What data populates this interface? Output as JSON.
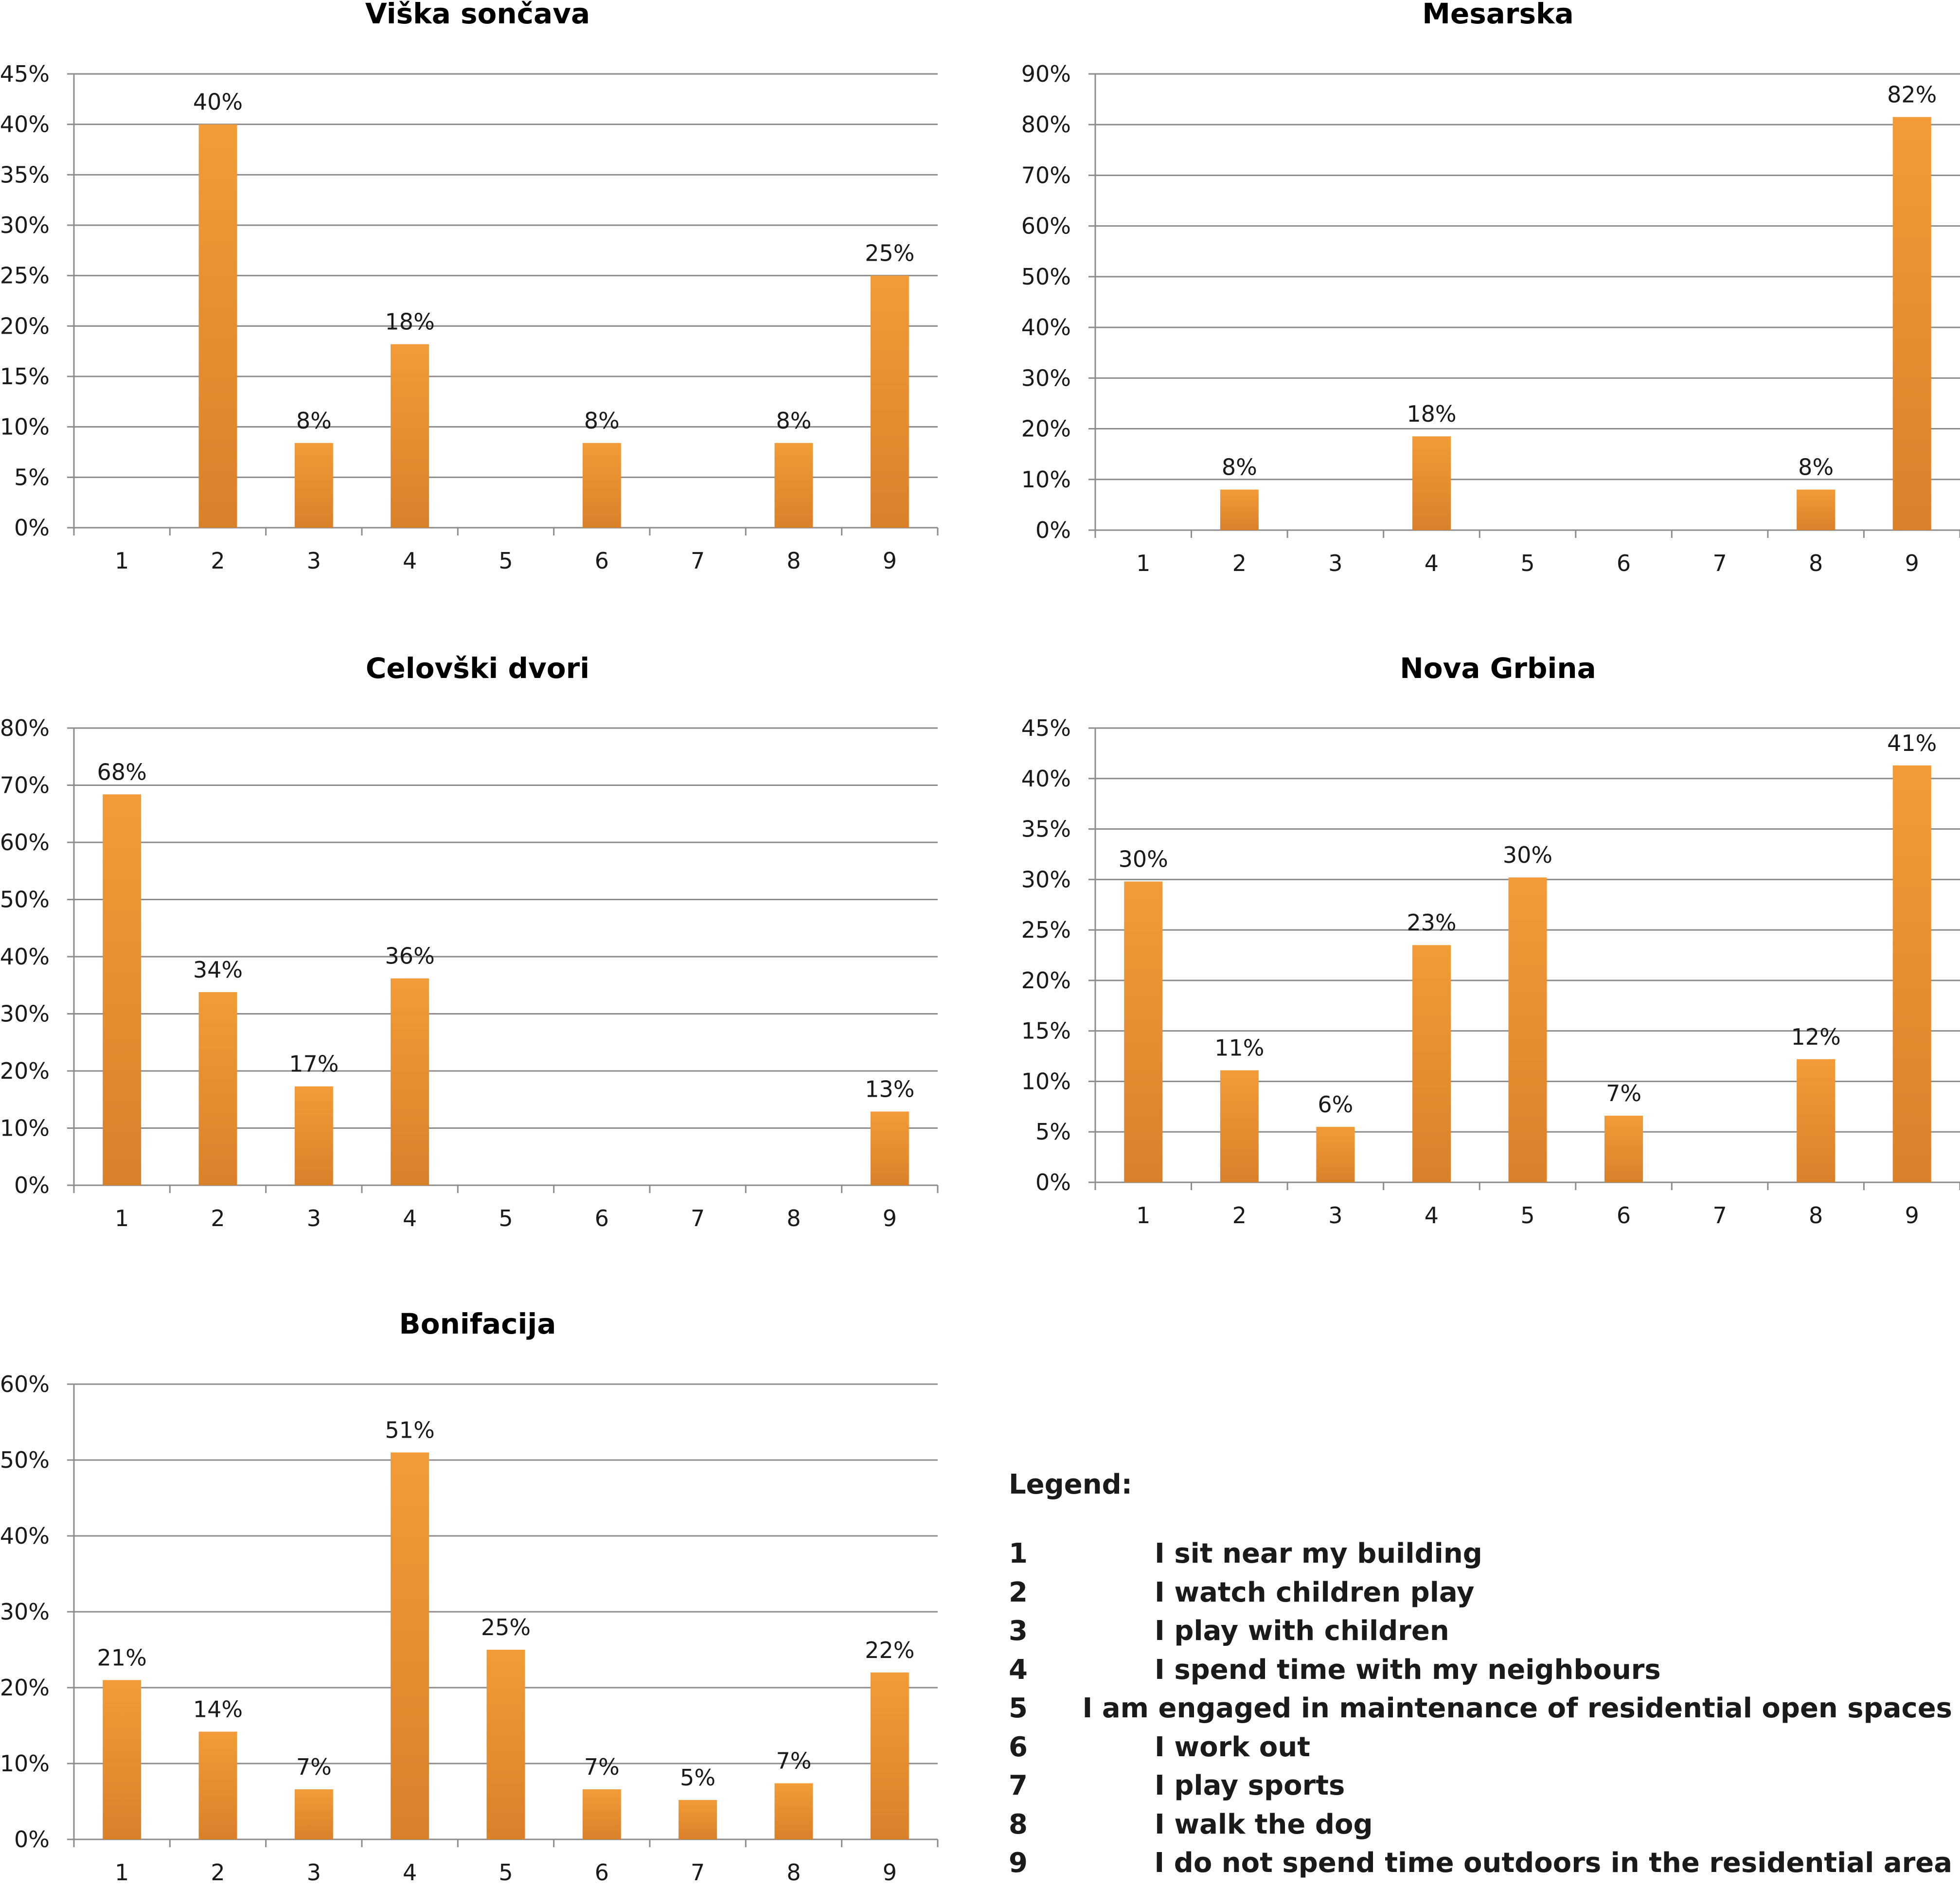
{
  "bar_color": "#f29b38",
  "bar_color_dark": "#d9812a",
  "chart_data": [
    {
      "type": "bar",
      "title": "Viška sončava",
      "categories": [
        "1",
        "2",
        "3",
        "4",
        "5",
        "6",
        "7",
        "8",
        "9"
      ],
      "values": [
        0,
        40,
        8.4,
        18.2,
        0,
        8.4,
        0,
        8.4,
        25
      ],
      "labels": [
        "",
        "40%",
        "8%",
        "18%",
        "",
        "8%",
        "",
        "8%",
        "25%"
      ],
      "ylim": [
        0,
        45
      ],
      "ystep": 5,
      "yticks": [
        "0%",
        "5%",
        "10%",
        "15%",
        "20%",
        "25%",
        "30%",
        "35%",
        "40%",
        "45%"
      ],
      "xlabel": "",
      "ylabel": ""
    },
    {
      "type": "bar",
      "title": "Mesarska",
      "categories": [
        "1",
        "2",
        "3",
        "4",
        "5",
        "6",
        "7",
        "8",
        "9"
      ],
      "values": [
        0,
        8,
        0,
        18.5,
        0,
        0,
        0,
        8,
        81.5
      ],
      "labels": [
        "",
        "8%",
        "",
        "18%",
        "",
        "",
        "",
        "8%",
        "82%"
      ],
      "ylim": [
        0,
        90
      ],
      "ystep": 10,
      "yticks": [
        "0%",
        "10%",
        "20%",
        "30%",
        "40%",
        "50%",
        "60%",
        "70%",
        "80%",
        "90%"
      ],
      "xlabel": "",
      "ylabel": ""
    },
    {
      "type": "bar",
      "title": "Celovški dvori",
      "categories": [
        "1",
        "2",
        "3",
        "4",
        "5",
        "6",
        "7",
        "8",
        "9"
      ],
      "values": [
        68.4,
        33.8,
        17.3,
        36.2,
        0,
        0,
        0,
        0,
        12.9
      ],
      "labels": [
        "68%",
        "34%",
        "17%",
        "36%",
        "",
        "",
        "",
        "",
        "13%"
      ],
      "ylim": [
        0,
        80
      ],
      "ystep": 10,
      "yticks": [
        "0%",
        "10%",
        "20%",
        "30%",
        "40%",
        "50%",
        "60%",
        "70%",
        "80%"
      ],
      "xlabel": "",
      "ylabel": ""
    },
    {
      "type": "bar",
      "title": "Nova Grbina",
      "categories": [
        "1",
        "2",
        "3",
        "4",
        "5",
        "6",
        "7",
        "8",
        "9"
      ],
      "values": [
        29.8,
        11.1,
        5.5,
        23.5,
        30.2,
        6.6,
        0,
        12.2,
        41.3
      ],
      "labels": [
        "30%",
        "11%",
        "6%",
        "23%",
        "30%",
        "7%",
        "",
        "12%",
        "41%"
      ],
      "ylim": [
        0,
        45
      ],
      "ystep": 5,
      "yticks": [
        "0%",
        "5%",
        "10%",
        "15%",
        "20%",
        "25%",
        "30%",
        "35%",
        "40%",
        "45%"
      ],
      "xlabel": "",
      "ylabel": ""
    },
    {
      "type": "bar",
      "title": "Bonifacija",
      "categories": [
        "1",
        "2",
        "3",
        "4",
        "5",
        "6",
        "7",
        "8",
        "9"
      ],
      "values": [
        21,
        14.2,
        6.6,
        51,
        25,
        6.6,
        5.2,
        7.4,
        22
      ],
      "labels": [
        "21%",
        "14%",
        "7%",
        "51%",
        "25%",
        "7%",
        "5%",
        "7%",
        "22%"
      ],
      "ylim": [
        0,
        60
      ],
      "ystep": 10,
      "yticks": [
        "0%",
        "10%",
        "20%",
        "30%",
        "40%",
        "50%",
        "60%"
      ],
      "xlabel": "",
      "ylabel": ""
    }
  ],
  "legend": {
    "title": "Legend:",
    "items": [
      {
        "num": "1",
        "text": "I sit near my building"
      },
      {
        "num": "2",
        "text": "I watch children play"
      },
      {
        "num": "3",
        "text": "I play with children"
      },
      {
        "num": "4",
        "text": "I spend time with my neighbours"
      },
      {
        "num": "5",
        "text": "I am engaged in maintenance of residential open spaces"
      },
      {
        "num": "6",
        "text": "I work out"
      },
      {
        "num": "7",
        "text": "I play sports"
      },
      {
        "num": "8",
        "text": "I walk the dog"
      },
      {
        "num": "9",
        "text": "I do not spend time outdoors in the residential area"
      }
    ]
  }
}
